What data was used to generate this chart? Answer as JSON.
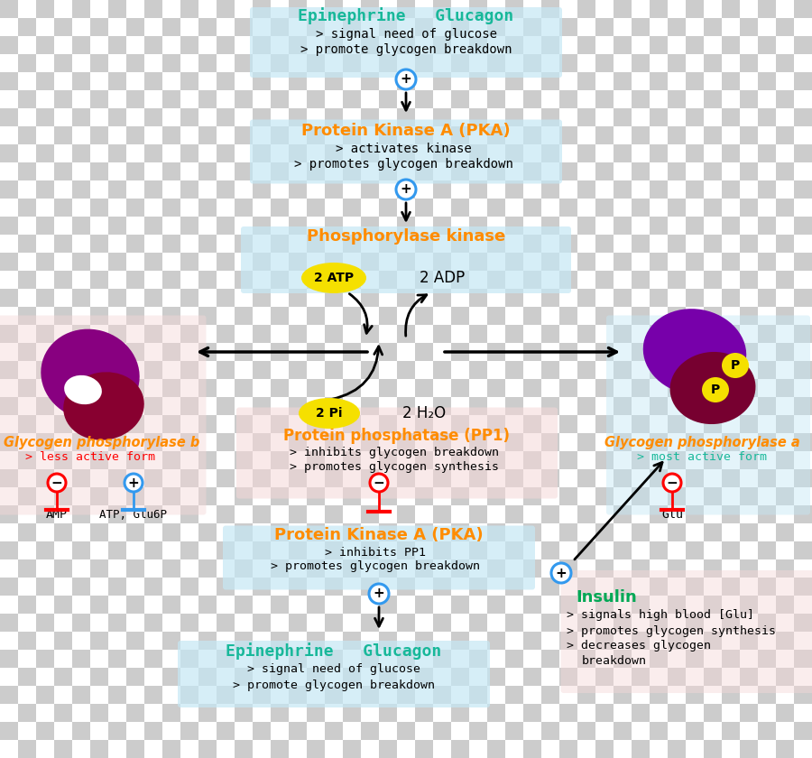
{
  "box_blue": "#c5e8f5",
  "box_pink": "#f5d8d8",
  "orange": "#FF8C00",
  "teal": "#18B89A",
  "green": "#00A855",
  "red": "#DD0000",
  "blue_circ": "#3399EE",
  "yellow": "#F5E000",
  "black": "#111111",
  "top_epi_title": "Epinephrine   Glucagon",
  "top_epi_line1": "> signal need of glucose",
  "top_epi_line2": "> promote glycogen breakdown",
  "pka1_title": "Protein Kinase A (PKA)",
  "pka1_line1": "> activates kinase",
  "pka1_line2": "> promotes glycogen breakdown",
  "phoskin_title": "Phosphorylase kinase",
  "atp_label": "2 ATP",
  "adp_label": "2 ADP",
  "glycob_title": "Glycogen phosphorylase b",
  "glycob_sub": "> less active form",
  "glycoa_title": "Glycogen phosphorylase a",
  "glycoa_sub": "> most active form",
  "pp1_title": "Protein phosphatase (PP1)",
  "pp1_line1": "> inhibits glycogen breakdown",
  "pp1_line2": "> promotes glycogen synthesis",
  "pi_label": "2 Pi",
  "h2o_label": "2 H₂O",
  "pka2_title": "Protein Kinase A (PKA)",
  "pka2_line1": "> inhibits PP1",
  "pka2_line2": "> promotes glycogen breakdown",
  "bot_epi_title": "Epinephrine   Glucagon",
  "bot_epi_line1": "> signal need of glucose",
  "bot_epi_line2": "> promote glycogen breakdown",
  "insulin_title": "Insulin",
  "insulin_line1": "> signals high blood [Glu]",
  "insulin_line2": "> promotes glycogen synthesis",
  "insulin_line3": "> decreases glycogen",
  "insulin_line4": "breakdown",
  "amp_label": "AMP",
  "atpglu_label": "ATP, Glu6P",
  "glu_label": "Glu",
  "checker_light": "#ffffff",
  "checker_dark": "#cccccc",
  "checker_size": 20
}
